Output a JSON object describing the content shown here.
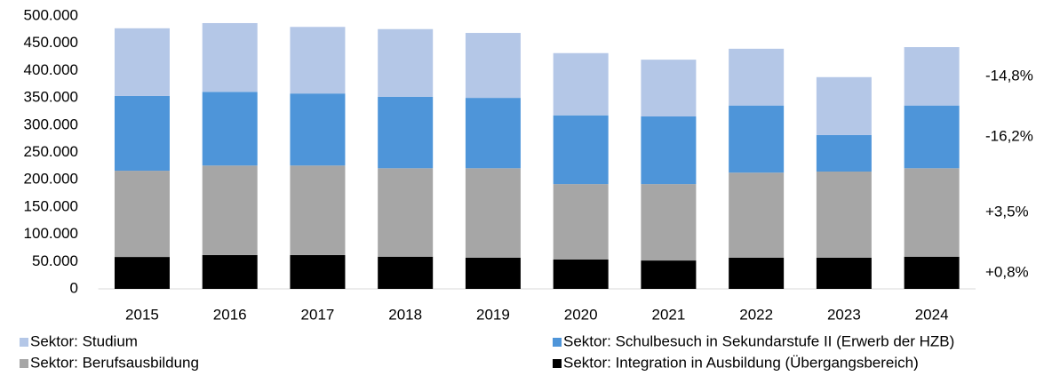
{
  "chart_data": {
    "type": "stacked-bar",
    "categories": [
      "2015",
      "2016",
      "2017",
      "2018",
      "2019",
      "2020",
      "2021",
      "2022",
      "2023",
      "2024"
    ],
    "series": [
      {
        "name": "Sektor: Studium",
        "color": "#b4c7e7",
        "values": [
          124000,
          126000,
          122000,
          124000,
          119000,
          114000,
          104000,
          104000,
          106000,
          107000
        ]
      },
      {
        "name": "Sektor: Schulbesuch in Sekundarstufe II (Erwerb der HZB)",
        "color": "#4e95d9",
        "values": [
          137000,
          135000,
          132000,
          131000,
          129000,
          126000,
          124000,
          123000,
          67000,
          115000
        ]
      },
      {
        "name": "Sektor: Berufsausbildung",
        "color": "#a6a6a6",
        "values": [
          158000,
          164000,
          164000,
          162000,
          164000,
          138000,
          140000,
          156000,
          158000,
          162000
        ]
      },
      {
        "name": "Sektor: Integration in Ausbildung (Übergangsbereich)",
        "color": "#000000",
        "values": [
          58500,
          62000,
          62000,
          59000,
          57000,
          54000,
          52000,
          57000,
          57000,
          59000
        ]
      }
    ],
    "annotations": [
      "-14,8%",
      "-16,2%",
      "+3,5%",
      "+0,8%"
    ],
    "ylim": [
      0,
      500000
    ],
    "yticks": [
      0,
      {
        "value": 50000,
        "label": "50.000"
      },
      {
        "value": 100000,
        "label": "100.000"
      },
      {
        "value": 150000,
        "label": "150.000"
      },
      {
        "value": 200000,
        "label": "200.000"
      },
      {
        "value": 250000,
        "label": "250.000"
      },
      {
        "value": 300000,
        "label": "300.000"
      },
      {
        "value": 350000,
        "label": "350.000"
      },
      {
        "value": 400000,
        "label": "400.000"
      },
      {
        "value": 450000,
        "label": "450.000"
      },
      {
        "value": 500000,
        "label": "500.000"
      }
    ],
    "grid": false
  }
}
